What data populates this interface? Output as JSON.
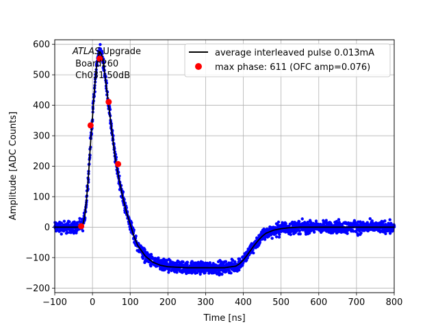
{
  "chart_data": {
    "type": "scatter",
    "title": "",
    "xlabel": "Time [ns]",
    "ylabel": "Amplitude [ADC Counts]",
    "xlim": [
      -100,
      800
    ],
    "ylim": [
      -215,
      615
    ],
    "grid": true,
    "x_ticks": [
      -100,
      0,
      100,
      200,
      300,
      400,
      500,
      600,
      700,
      800
    ],
    "y_ticks": [
      -200,
      -100,
      0,
      100,
      200,
      300,
      400,
      500,
      600
    ],
    "x_tick_labels": [
      "−100",
      "0",
      "100",
      "200",
      "300",
      "400",
      "500",
      "600",
      "700",
      "800"
    ],
    "y_tick_labels": [
      "−200",
      "−100",
      "0",
      "100",
      "200",
      "300",
      "400",
      "500",
      "600"
    ],
    "annotation": {
      "italic": "ATLAS",
      "rest": " Upgrade",
      "line2": " Board260",
      "line3": " Ch031 50dB"
    },
    "legend": {
      "placement": "top-right",
      "entries": [
        {
          "label": "average interleaved pulse 0.013mA",
          "marker": "line",
          "color": "#000000"
        },
        {
          "label": "max phase: 611 (OFC amp=0.076)",
          "marker": "circle",
          "color": "#ff0000"
        }
      ]
    },
    "series": [
      {
        "kind": "line",
        "color": "#000000",
        "x": [
          -100,
          -40,
          -30,
          -25,
          -20,
          -15,
          -10,
          -5,
          0,
          5,
          10,
          15,
          20,
          25,
          30,
          40,
          50,
          60,
          70,
          80,
          90,
          100,
          110,
          120,
          140,
          160,
          180,
          200,
          250,
          300,
          350,
          380,
          390,
          400,
          410,
          420,
          430,
          440,
          450,
          460,
          480,
          500,
          520,
          550,
          600,
          700,
          800
        ],
        "y": [
          0,
          0,
          2,
          10,
          40,
          100,
          180,
          280,
          360,
          450,
          520,
          560,
          575,
          565,
          530,
          430,
          330,
          230,
          160,
          100,
          50,
          10,
          -30,
          -60,
          -95,
          -115,
          -125,
          -130,
          -133,
          -133,
          -133,
          -128,
          -120,
          -108,
          -92,
          -75,
          -58,
          -43,
          -30,
          -20,
          -10,
          -5,
          -2,
          0,
          0,
          0,
          0
        ]
      },
      {
        "kind": "scatter-noise",
        "color": "#0000ff",
        "base_line": 0,
        "noise": 14
      },
      {
        "kind": "points",
        "color": "#ff0000",
        "x": [
          -30,
          -5,
          19,
          43,
          68
        ],
        "y": [
          3,
          334,
          553,
          411,
          207
        ]
      }
    ]
  }
}
